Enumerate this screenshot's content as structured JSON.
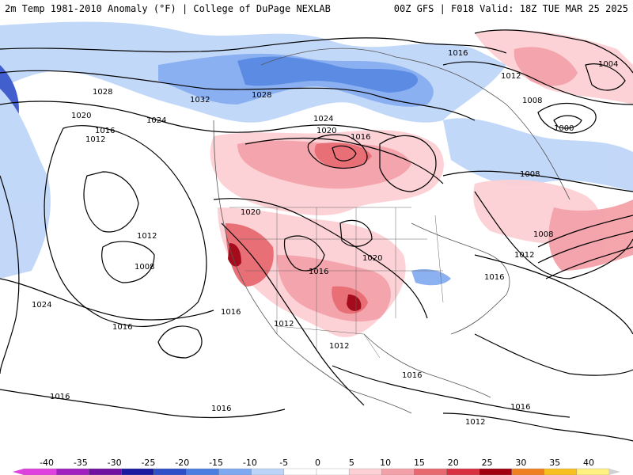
{
  "header": {
    "title": "2m Temp 1981-2010 Anomaly (°F) | College of DuPage NEXLAB",
    "run": "00Z GFS | F018 Valid: 18Z TUE MAR 25 2025"
  },
  "colorbar": {
    "ticks": [
      "-40",
      "-35",
      "-30",
      "-25",
      "-20",
      "-15",
      "-10",
      "-5",
      "0",
      "5",
      "10",
      "15",
      "20",
      "25",
      "30",
      "35",
      "40"
    ],
    "colors": [
      "#e040e0",
      "#a020c0",
      "#7010a0",
      "#1a1aa0",
      "#2e4fc8",
      "#4a7fe0",
      "#7ea8f0",
      "#bcd4f8",
      "#ffffff",
      "#ffffff",
      "#fcd0d4",
      "#f4a0a8",
      "#e86870",
      "#d83040",
      "#a00010",
      "#f08020",
      "#f8c020",
      "#fff080"
    ]
  },
  "isobars": {
    "labels": [
      "1028",
      "1032",
      "1028",
      "1024",
      "1020",
      "1016",
      "1016",
      "1004",
      "1012",
      "1008",
      "1000",
      "1020",
      "1016",
      "1012",
      "1024",
      "1008",
      "1020",
      "1012",
      "1008",
      "1024",
      "1016",
      "1016",
      "1020",
      "1016",
      "1012",
      "1012",
      "1016",
      "1016",
      "1016",
      "1012",
      "1016",
      "1008",
      "1012",
      "1016"
    ]
  }
}
